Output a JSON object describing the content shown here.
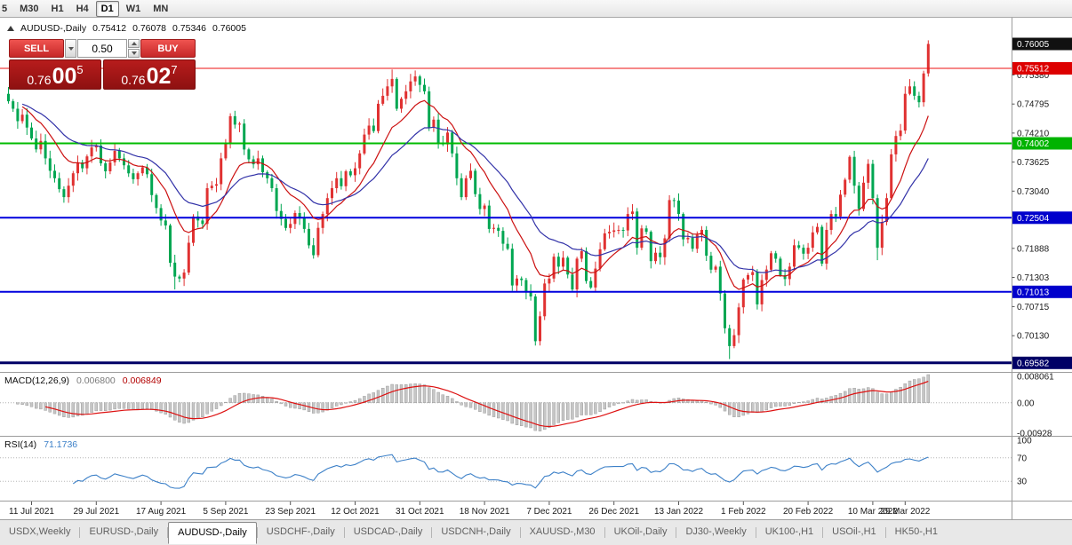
{
  "toolbar": {
    "periods": [
      {
        "label": "5",
        "active": false
      },
      {
        "label": "M30",
        "active": false
      },
      {
        "label": "H1",
        "active": false
      },
      {
        "label": "H4",
        "active": false
      },
      {
        "label": "D1",
        "active": true
      },
      {
        "label": "W1",
        "active": false
      },
      {
        "label": "MN",
        "active": false
      }
    ]
  },
  "chart_header": {
    "symbol": "AUDUSD-,Daily",
    "open": "0.75412",
    "high": "0.76078",
    "low": "0.75346",
    "close": "0.76005"
  },
  "trade_panel": {
    "sell_label": "SELL",
    "buy_label": "BUY",
    "volume": "0.50",
    "bid": {
      "big": "0.76",
      "mid": "00",
      "sup": "5"
    },
    "ask": {
      "big": "0.76",
      "mid": "02",
      "sup": "7"
    }
  },
  "macd_header": {
    "name": "MACD(12,26,9)",
    "main": "0.006800",
    "signal": "0.006849"
  },
  "rsi_header": {
    "name": "RSI(14)",
    "value": "71.1736"
  },
  "tabs": [
    {
      "label": "USDX,Weekly",
      "active": false
    },
    {
      "label": "EURUSD-,Daily",
      "active": false
    },
    {
      "label": "AUDUSD-,Daily",
      "active": true
    },
    {
      "label": "USDCHF-,Daily",
      "active": false
    },
    {
      "label": "USDCAD-,Daily",
      "active": false
    },
    {
      "label": "USDCNH-,Daily",
      "active": false
    },
    {
      "label": "XAUUSD-,M30",
      "active": false
    },
    {
      "label": "UKOil-,Daily",
      "active": false
    },
    {
      "label": "DJ30-,Weekly",
      "active": false
    },
    {
      "label": "UK100-,H1",
      "active": false
    },
    {
      "label": "USOil-,H1",
      "active": false
    },
    {
      "label": "HK50-,H1",
      "active": false
    }
  ],
  "chart_data": {
    "type": "candlestick",
    "symbol": "AUDUSD-",
    "timeframe": "Daily",
    "y_axis_range": [
      0.694,
      0.7646
    ],
    "candle_colors": {
      "up": "#e03131",
      "down": "#00a651"
    },
    "first_open": 0.75,
    "closes": [
      0.7485,
      0.747,
      0.7445,
      0.7458,
      0.7432,
      0.741,
      0.7388,
      0.7405,
      0.737,
      0.7345,
      0.733,
      0.7308,
      0.7292,
      0.7315,
      0.734,
      0.7362,
      0.735,
      0.7374,
      0.7392,
      0.7396,
      0.736,
      0.7344,
      0.7362,
      0.7385,
      0.737,
      0.7356,
      0.734,
      0.7328,
      0.734,
      0.7352,
      0.7338,
      0.7296,
      0.727,
      0.7245,
      0.7235,
      0.716,
      0.7132,
      0.7128,
      0.714,
      0.72,
      0.7253,
      0.7245,
      0.7238,
      0.731,
      0.7315,
      0.7318,
      0.737,
      0.74,
      0.7455,
      0.7438,
      0.744,
      0.7388,
      0.7368,
      0.7358,
      0.737,
      0.7342,
      0.733,
      0.731,
      0.7264,
      0.7248,
      0.723,
      0.7238,
      0.726,
      0.725,
      0.7228,
      0.7195,
      0.7175,
      0.723,
      0.7258,
      0.729,
      0.731,
      0.733,
      0.7314,
      0.7344,
      0.7336,
      0.735,
      0.738,
      0.7418,
      0.7436,
      0.7425,
      0.748,
      0.7496,
      0.7515,
      0.753,
      0.747,
      0.749,
      0.7505,
      0.7525,
      0.7535,
      0.7518,
      0.7505,
      0.7432,
      0.7448,
      0.74,
      0.7398,
      0.7422,
      0.738,
      0.733,
      0.7292,
      0.733,
      0.7345,
      0.7298,
      0.7268,
      0.7275,
      0.7228,
      0.723,
      0.7224,
      0.7198,
      0.7188,
      0.7114,
      0.7128,
      0.7125,
      0.7102,
      0.7092,
      0.7002,
      0.7052,
      0.7118,
      0.7128,
      0.7172,
      0.7152,
      0.717,
      0.7136,
      0.7106,
      0.7168,
      0.7183,
      0.7123,
      0.711,
      0.7148,
      0.7187,
      0.7219,
      0.7222,
      0.7225,
      0.7226,
      0.7225,
      0.7258,
      0.7263,
      0.719,
      0.7229,
      0.7222,
      0.7163,
      0.718,
      0.7171,
      0.7209,
      0.7286,
      0.7285,
      0.7258,
      0.7207,
      0.721,
      0.7188,
      0.7216,
      0.7226,
      0.7174,
      0.7146,
      0.7152,
      0.7098,
      0.7028,
      0.6992,
      0.7014,
      0.707,
      0.7126,
      0.7135,
      0.7141,
      0.7076,
      0.7125,
      0.7146,
      0.7179,
      0.7168,
      0.7135,
      0.7127,
      0.7152,
      0.7195,
      0.719,
      0.7178,
      0.719,
      0.7221,
      0.7232,
      0.7158,
      0.7226,
      0.7258,
      0.7253,
      0.7297,
      0.7327,
      0.7373,
      0.7315,
      0.7268,
      0.7321,
      0.7359,
      0.729,
      0.719,
      0.7242,
      0.729,
      0.7378,
      0.7415,
      0.7426,
      0.75,
      0.7515,
      0.7496,
      0.7483,
      0.7541,
      0.76005
    ],
    "wick_overrides": {
      "36": {
        "low": 0.7106
      },
      "66": {
        "low": 0.7168
      },
      "83": {
        "high": 0.7549
      },
      "114": {
        "low": 0.6993
      },
      "156": {
        "low": 0.6966
      },
      "188": {
        "low": 0.7165
      }
    },
    "last_candle": {
      "open": 0.75412,
      "high": 0.76078,
      "low": 0.75346,
      "close": 0.76005
    },
    "hlines": [
      {
        "price": 0.75512,
        "color": "#ee1111",
        "width": 1
      },
      {
        "price": 0.74002,
        "color": "#00bb00",
        "width": 2
      },
      {
        "price": 0.72504,
        "color": "#0000dd",
        "width": 2
      },
      {
        "price": 0.71013,
        "color": "#0000dd",
        "width": 2
      },
      {
        "price": 0.69582,
        "color": "#000066",
        "width": 3
      }
    ],
    "overlays": [
      {
        "type": "ema",
        "period": 12,
        "color": "#cc1111"
      },
      {
        "type": "ema",
        "period": 26,
        "color": "#3232a8"
      }
    ],
    "macd": {
      "fast": 12,
      "slow": 26,
      "signal": 9,
      "hist_color": "#c6c6c6",
      "hist_stroke": "#909090",
      "signal_color": "#dd1111",
      "axis": [
        {
          "v": 0.008061,
          "label": "0.008061"
        },
        {
          "v": 0,
          "label": "0.00"
        },
        {
          "v": -0.00928,
          "label": "-0.00928"
        }
      ]
    },
    "rsi": {
      "period": 14,
      "line_color": "#3c80c8",
      "levels": [
        {
          "v": 100,
          "label": "100"
        },
        {
          "v": 70,
          "label": "70"
        },
        {
          "v": 30,
          "label": "30"
        }
      ],
      "dotted": [
        70,
        30
      ]
    },
    "price_axis": {
      "ticks": [
        0.7538,
        0.74795,
        0.7421,
        0.73625,
        0.7304,
        0.71888,
        0.71303,
        0.70715,
        0.7013
      ],
      "markers": [
        {
          "price": 0.76005,
          "color": "#111111"
        },
        {
          "price": 0.75512,
          "color": "#dd0000"
        },
        {
          "price": 0.74002,
          "color": "#00b300"
        },
        {
          "price": 0.72504,
          "color": "#0000cc"
        },
        {
          "price": 0.71013,
          "color": "#0000cc"
        },
        {
          "price": 0.69582,
          "color": "#000066"
        }
      ]
    },
    "time_labels": [
      {
        "text": "11 Jul 2021",
        "bar": 5
      },
      {
        "text": "29 Jul 2021",
        "bar": 19
      },
      {
        "text": "17 Aug 2021",
        "bar": 33
      },
      {
        "text": "5 Sep 2021",
        "bar": 47
      },
      {
        "text": "23 Sep 2021",
        "bar": 61
      },
      {
        "text": "12 Oct 2021",
        "bar": 75
      },
      {
        "text": "31 Oct 2021",
        "bar": 89
      },
      {
        "text": "18 Nov 2021",
        "bar": 103
      },
      {
        "text": "7 Dec 2021",
        "bar": 117
      },
      {
        "text": "26 Dec 2021",
        "bar": 131
      },
      {
        "text": "13 Jan 2022",
        "bar": 145
      },
      {
        "text": "1 Feb 2022",
        "bar": 159
      },
      {
        "text": "20 Feb 2022",
        "bar": 173
      },
      {
        "text": "10 Mar 2022",
        "bar": 187
      },
      {
        "text": "29 Mar 2022",
        "bar": 194
      }
    ]
  }
}
